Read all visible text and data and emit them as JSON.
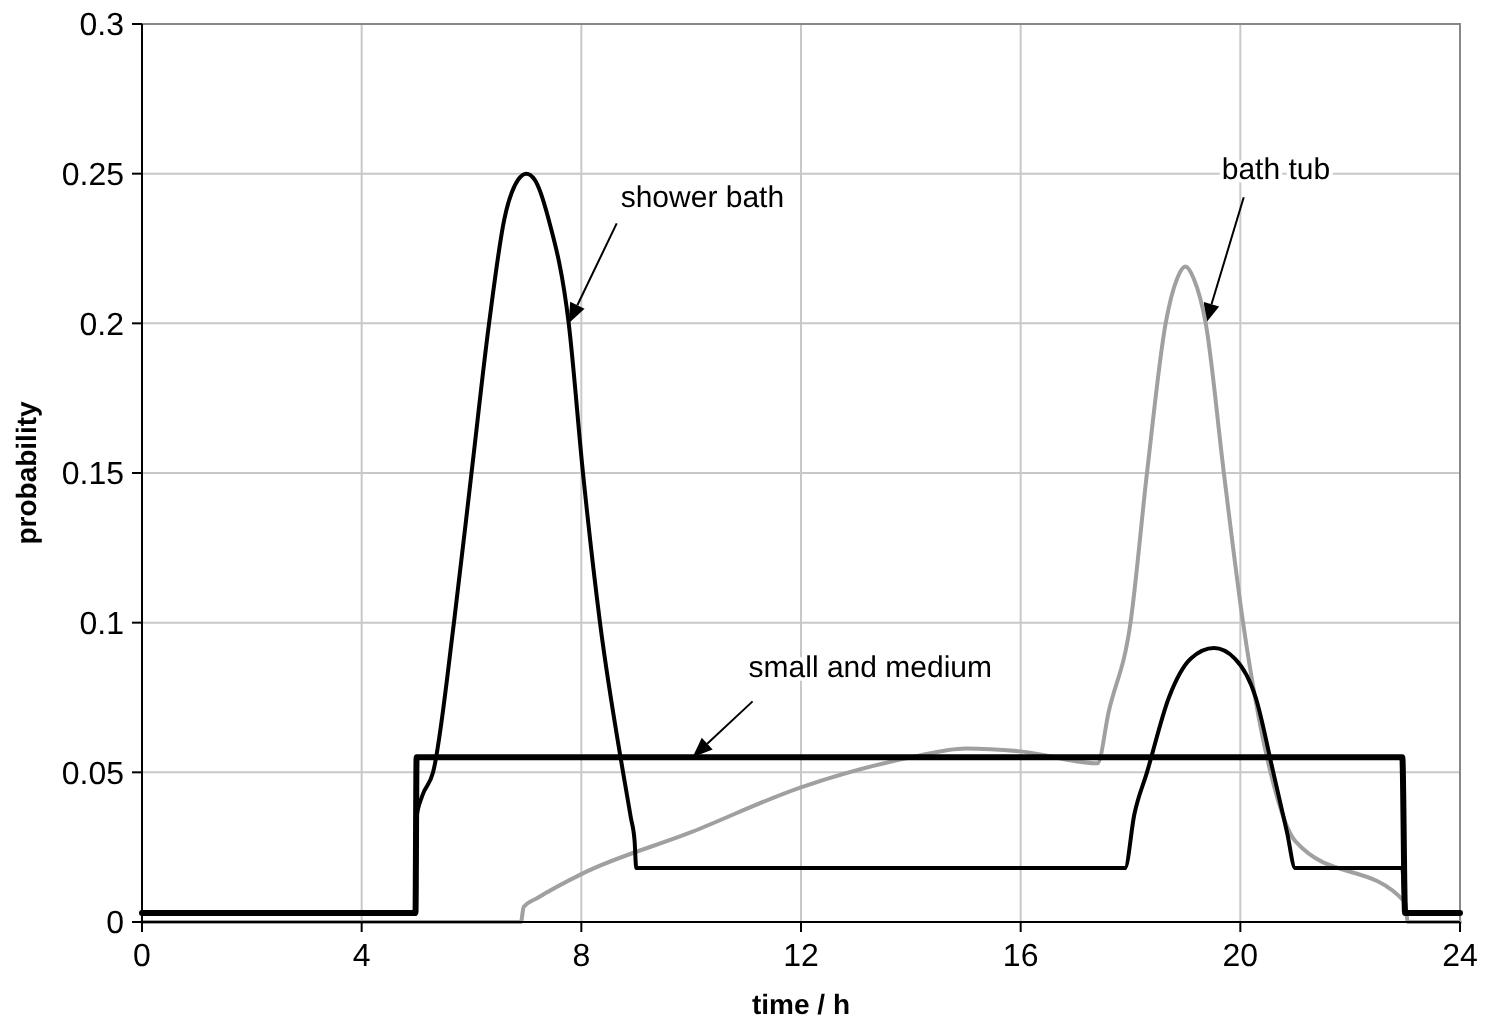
{
  "chart_data": {
    "type": "line",
    "xlabel": "time / h",
    "ylabel": "probability",
    "xlim": [
      0,
      24
    ],
    "xticks": [
      0,
      4,
      8,
      12,
      16,
      20,
      24
    ],
    "ylim": [
      0,
      0.3
    ],
    "yticks": [
      0,
      0.05,
      0.1,
      0.15,
      0.2,
      0.25,
      0.3
    ],
    "grid": true,
    "series": [
      {
        "name": "bath tub",
        "color": "#a0a0a0",
        "x": [
          0,
          6.9,
          6.95,
          7.2,
          8,
          10,
          12,
          14,
          15,
          16,
          17.4,
          17.6,
          18,
          18.3,
          18.64,
          18.85,
          19,
          19.15,
          19.37,
          19.7,
          20.05,
          20.55,
          21,
          23,
          23.05,
          24
        ],
        "values": [
          0,
          0,
          0.005,
          0.008,
          0.016,
          0.03,
          0.045,
          0.055,
          0.058,
          0.057,
          0.053,
          0.07,
          0.1,
          0.15,
          0.2,
          0.215,
          0.219,
          0.215,
          0.2,
          0.15,
          0.1,
          0.05,
          0.027,
          0.0066,
          0,
          0
        ]
      },
      {
        "name": "shower bath",
        "color": "#000000",
        "x": [
          0,
          4.98,
          5,
          5.1,
          5.3,
          5.68,
          6,
          6.32,
          6.6,
          6.85,
          7,
          7.15,
          7.4,
          7.77,
          8.03,
          8.34,
          8.76,
          8.9,
          8.97,
          9,
          17.9,
          18.07,
          18.3,
          18.7,
          19.1,
          19.52,
          19.9,
          20.28,
          20.6,
          20.85,
          21,
          22.95,
          23,
          24
        ],
        "values": [
          0.003,
          0.003,
          0.035,
          0.042,
          0.05,
          0.1,
          0.15,
          0.2,
          0.235,
          0.248,
          0.25,
          0.248,
          0.235,
          0.2,
          0.15,
          0.1,
          0.05,
          0.035,
          0.027,
          0.018,
          0.018,
          0.036,
          0.05,
          0.075,
          0.088,
          0.0915,
          0.088,
          0.075,
          0.05,
          0.03,
          0.018,
          0.018,
          0.003,
          0.003
        ]
      },
      {
        "name": "small and medium",
        "color": "#000000",
        "x": [
          0,
          4.98,
          5,
          22.95,
          23,
          24
        ],
        "values": [
          0.003,
          0.003,
          0.055,
          0.055,
          0.003,
          0.003
        ]
      }
    ]
  }
}
